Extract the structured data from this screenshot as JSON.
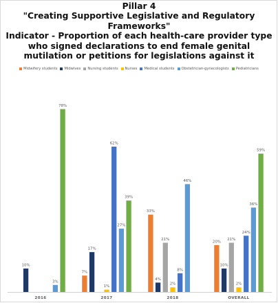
{
  "title_lines": [
    "Pillar 4",
    "\"Creating Supportive Legislative and Regulatory",
    "Frameworks\"",
    "Indicator - Proportion of each health-care provider type",
    "who signed declarations to end female genital",
    "mutilation or petitions for legislations against it"
  ],
  "chart_data": {
    "type": "bar",
    "categories": [
      "2016",
      "2017",
      "2018",
      "OVERALL"
    ],
    "series": [
      {
        "name": "Midwifery students",
        "color": "#ED7D31",
        "values": [
          null,
          7,
          33,
          20
        ],
        "labels": [
          "",
          "7%",
          "33%",
          "20%"
        ]
      },
      {
        "name": "Midwives",
        "color": "#203864",
        "values": [
          10,
          17,
          4,
          10
        ],
        "labels": [
          "10%",
          "17%",
          "4%",
          "10%"
        ]
      },
      {
        "name": "Nursing students",
        "color": "#A5A5A5",
        "values": [
          null,
          null,
          21,
          21
        ],
        "labels": [
          "",
          "",
          "21%",
          "21%"
        ]
      },
      {
        "name": "Nurses",
        "color": "#FFC000",
        "values": [
          null,
          1,
          2,
          2
        ],
        "labels": [
          "",
          "1%",
          "2%",
          "2%"
        ]
      },
      {
        "name": "Medical students",
        "color": "#4472C4",
        "values": [
          null,
          62,
          8,
          24
        ],
        "labels": [
          "",
          "62%",
          "8%",
          "24%"
        ]
      },
      {
        "name": "Obstetrician-gynecologists",
        "color": "#5B9BD5",
        "values": [
          3,
          27,
          46,
          36
        ],
        "labels": [
          "3%",
          "27%",
          "46%",
          "36%"
        ]
      },
      {
        "name": "Pediatricians",
        "color": "#70AD47",
        "values": [
          78,
          39,
          null,
          59
        ],
        "labels": [
          "78%",
          "39%",
          "",
          "59%"
        ]
      }
    ],
    "ylim": [
      0,
      84
    ],
    "grid": false,
    "legend_position": "top"
  }
}
